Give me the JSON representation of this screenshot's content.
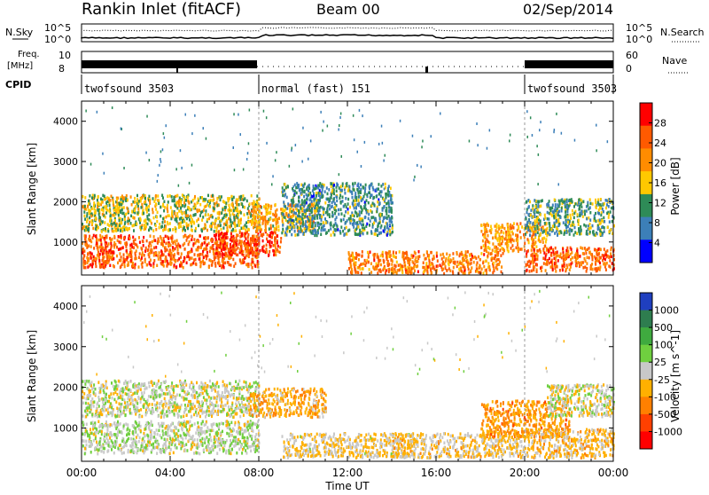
{
  "header": {
    "station": "Rankin Inlet (fitACF)",
    "beam": "Beam 00",
    "date": "02/Sep/2014"
  },
  "strip_labels": {
    "nsky": "N.Sky",
    "freq_top": "Freq.",
    "freq_unit": "[MHz]",
    "cpid": "CPID",
    "nsearch": "N.Search",
    "nave": "Nave"
  },
  "noise_axis": {
    "left_top": "10^5",
    "left_bottom": "10^0",
    "right_top": "10^5",
    "right_bottom": "10^0"
  },
  "freq_axis": {
    "left_top": "10",
    "left_bottom": "8",
    "right_top": "60",
    "right_bottom": "0"
  },
  "cpid_segments": [
    {
      "label": "twofsound 3503",
      "start_hour": 0
    },
    {
      "label": "normal (fast) 151",
      "start_hour": 8
    },
    {
      "label": "twofsound 3503",
      "start_hour": 20
    }
  ],
  "x_axis": {
    "label": "Time UT",
    "range_hours": [
      0,
      24
    ],
    "ticks": [
      "00:00",
      "04:00",
      "08:00",
      "12:00",
      "16:00",
      "20:00",
      "00:00"
    ]
  },
  "y_axis": {
    "label": "Slant Range [km]",
    "ticks": [
      "1000",
      "2000",
      "3000",
      "4000"
    ]
  },
  "colorbars": {
    "power": {
      "label": "Power [dB]",
      "ticks": [
        "28",
        "24",
        "20",
        "16",
        "12",
        "8",
        "4"
      ],
      "colors": [
        "#ff0000",
        "#ff5a00",
        "#ff8c00",
        "#ffc800",
        "#2e8b57",
        "#3c7fb8",
        "#0000ff"
      ]
    },
    "velocity": {
      "label": "Velocity [m s^-1]",
      "ticks": [
        "1000",
        "500",
        "100",
        "25",
        "-25",
        "-100",
        "-500",
        "-1000"
      ],
      "colors": [
        "#1f3fbf",
        "#2e7d4f",
        "#3faa3f",
        "#6fcf3f",
        "#c8c8c8",
        "#ffb000",
        "#ff8000",
        "#ff4000",
        "#ff0000"
      ]
    }
  },
  "chart_data": [
    {
      "type": "heatmap",
      "title": "Power [dB]",
      "xlabel": "Time UT",
      "ylabel": "Slant Range [km]",
      "xlim": [
        0,
        24
      ],
      "ylim": [
        180,
        4500
      ],
      "zlim": [
        0,
        30
      ],
      "blobs": [
        {
          "t": [
            0,
            8
          ],
          "r": [
            400,
            1200
          ],
          "z": 24
        },
        {
          "t": [
            0,
            8
          ],
          "r": [
            1300,
            2200
          ],
          "z": 14
        },
        {
          "t": [
            6,
            9
          ],
          "r": [
            700,
            1300
          ],
          "z": 26
        },
        {
          "t": [
            7.5,
            10.5
          ],
          "r": [
            1300,
            2000
          ],
          "z": 18
        },
        {
          "t": [
            9,
            14
          ],
          "r": [
            1200,
            2500
          ],
          "z": 8
        },
        {
          "t": [
            12,
            19
          ],
          "r": [
            250,
            800
          ],
          "z": 22
        },
        {
          "t": [
            18,
            21
          ],
          "r": [
            800,
            1500
          ],
          "z": 20
        },
        {
          "t": [
            20,
            24
          ],
          "r": [
            300,
            900
          ],
          "z": 24
        },
        {
          "t": [
            20,
            24
          ],
          "r": [
            1200,
            2100
          ],
          "z": 10
        }
      ]
    },
    {
      "type": "heatmap",
      "title": "Velocity [m s^-1]",
      "xlabel": "Time UT",
      "ylabel": "Slant Range [km]",
      "xlim": [
        0,
        24
      ],
      "ylim": [
        180,
        4500
      ],
      "zlim": [
        -1000,
        1000
      ],
      "blobs": [
        {
          "t": [
            0,
            8
          ],
          "r": [
            400,
            1200
          ],
          "z": 60
        },
        {
          "t": [
            0,
            8
          ],
          "r": [
            1300,
            2200
          ],
          "z": 0
        },
        {
          "t": [
            7.5,
            11
          ],
          "r": [
            1300,
            2000
          ],
          "z": -300
        },
        {
          "t": [
            9,
            15
          ],
          "r": [
            300,
            900
          ],
          "z": -120
        },
        {
          "t": [
            14,
            20
          ],
          "r": [
            300,
            900
          ],
          "z": -150
        },
        {
          "t": [
            18,
            22
          ],
          "r": [
            800,
            1700
          ],
          "z": -400
        },
        {
          "t": [
            20,
            24
          ],
          "r": [
            300,
            1000
          ],
          "z": -200
        },
        {
          "t": [
            21,
            24
          ],
          "r": [
            1300,
            2100
          ],
          "z": 0
        }
      ]
    }
  ]
}
